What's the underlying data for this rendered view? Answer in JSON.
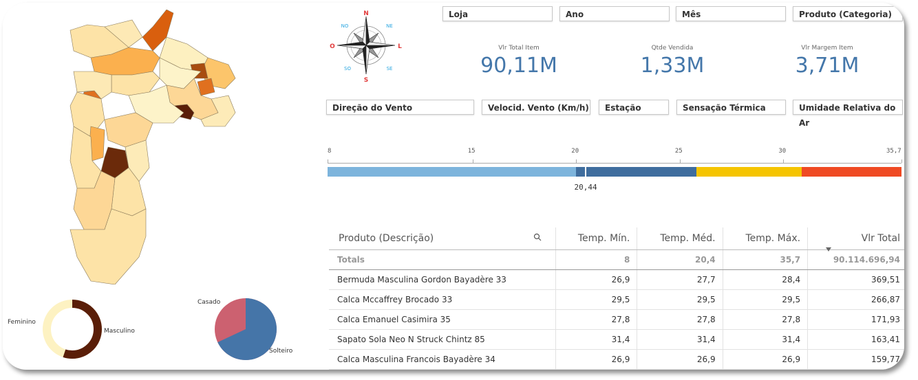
{
  "compass": {
    "n": "N",
    "ne": "NE",
    "no": "NO",
    "o": "O",
    "l": "L",
    "so": "SO",
    "se": "SE",
    "s": "S"
  },
  "filters_top": [
    "Loja",
    "Ano",
    "Mês",
    "Produto (Categoria)"
  ],
  "filters_mid": [
    "Direção do Vento",
    "Velocid. Vento (Km/h)",
    "Estação",
    "Sensação Térmica",
    "Umidade Relativa do Ar"
  ],
  "kpis": [
    {
      "title": "Vlr Total Item",
      "value": "90,11M"
    },
    {
      "title": "Qtde Vendida",
      "value": "1,33M"
    },
    {
      "title": "Vlr Margem Item",
      "value": "3,71M"
    }
  ],
  "gauge": {
    "ticks": [
      "8",
      "15",
      "20",
      "25",
      "30",
      "35,7"
    ],
    "tick_values": [
      8,
      15,
      20,
      25,
      30,
      35.7
    ],
    "min": 8,
    "max": 35.7,
    "bands": [
      {
        "from": 8,
        "to": 20,
        "color": "#7db4dc"
      },
      {
        "from": 20,
        "to": 25.8,
        "color": "#3f6d9e"
      },
      {
        "from": 25.8,
        "to": 30.9,
        "color": "#f5c400"
      },
      {
        "from": 30.9,
        "to": 35.7,
        "color": "#ef4a23"
      }
    ],
    "value": 20.44,
    "value_label": "20,44"
  },
  "donut": {
    "labels": {
      "left": "Feminino",
      "right": "Masculino"
    },
    "values": {
      "Masculino": 0.55,
      "Feminino": 0.45
    },
    "colors": {
      "Masculino": "#5a1e08",
      "Feminino": "#fdf2c2"
    }
  },
  "pie": {
    "labels": {
      "a": "Casado",
      "b": "Solteiro"
    },
    "values": {
      "Solteiro": 0.68,
      "Casado": 0.32
    },
    "colors": {
      "Solteiro": "#4575a8",
      "Casado": "#cc6170"
    }
  },
  "table": {
    "headers": [
      "Produto (Descrição)",
      "Temp. Mín.",
      "Temp. Méd.",
      "Temp. Máx.",
      "Vlr Total"
    ],
    "totals": [
      "Totals",
      "8",
      "20,4",
      "35,7",
      "90.114.696,94"
    ],
    "rows": [
      [
        "Bermuda Masculina Gordon Bayadère 33",
        "26,9",
        "27,7",
        "28,4",
        "369,51"
      ],
      [
        "Calca Mccaffrey Brocado 33",
        "29,5",
        "29,5",
        "29,5",
        "266,87"
      ],
      [
        "Calca Emanuel Casimira 35",
        "27,8",
        "27,8",
        "27,8",
        "171,93"
      ],
      [
        "Sapato Sola Neo N Struck Chintz 85",
        "31,4",
        "31,4",
        "31,4",
        "163,41"
      ],
      [
        "Calca Masculina Francois Bayadère 34",
        "26,9",
        "26,9",
        "26,9",
        "159,77"
      ]
    ]
  }
}
